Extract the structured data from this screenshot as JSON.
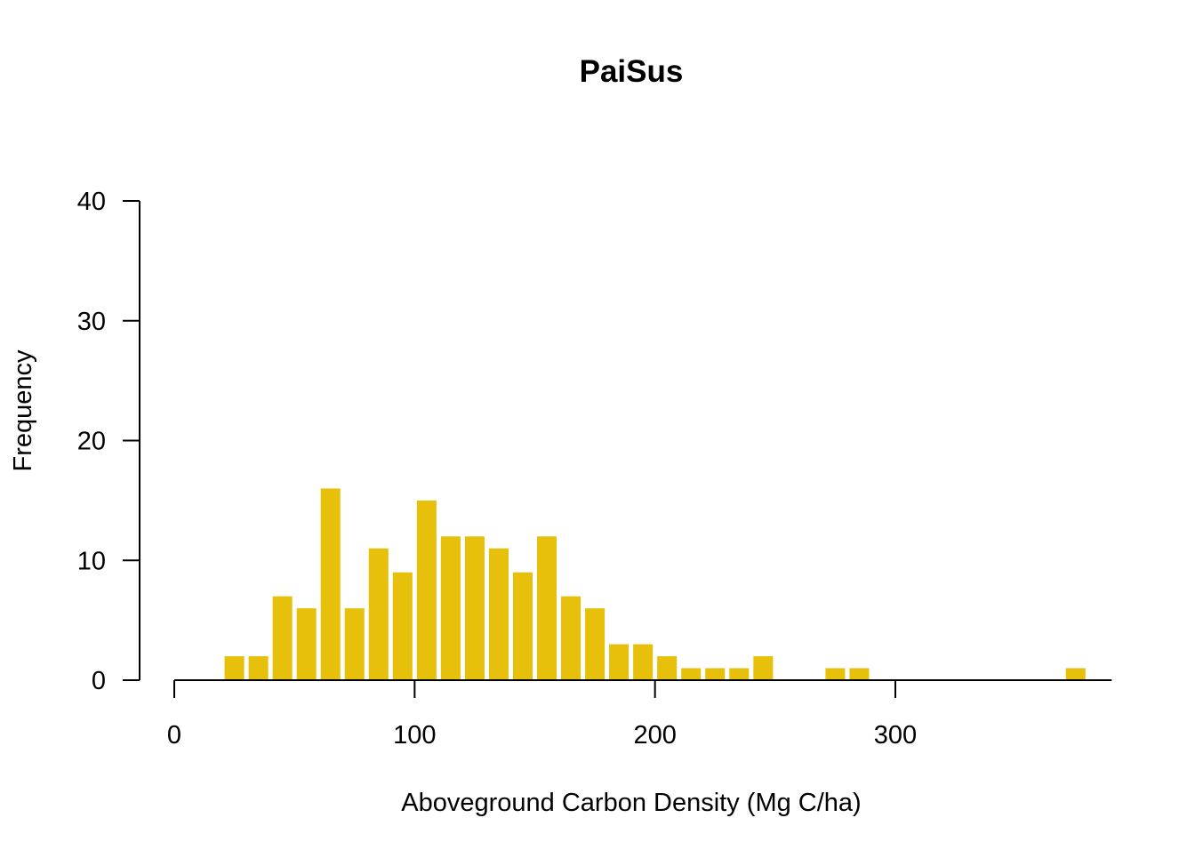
{
  "chart_data": {
    "type": "bar",
    "title": "PaiSus",
    "xlabel": "Aboveground Carbon Density (Mg C/ha)",
    "ylabel": "Frequency",
    "bar_color": "#E6C00A",
    "bin_width": 10,
    "xlim": [
      0,
      390
    ],
    "ylim": [
      0,
      40
    ],
    "x_ticks": [
      0,
      100,
      200,
      300
    ],
    "y_ticks": [
      0,
      10,
      20,
      30,
      40
    ],
    "bins": [
      {
        "start": 20,
        "end": 30,
        "count": 2
      },
      {
        "start": 30,
        "end": 40,
        "count": 2
      },
      {
        "start": 40,
        "end": 50,
        "count": 7
      },
      {
        "start": 50,
        "end": 60,
        "count": 6
      },
      {
        "start": 60,
        "end": 70,
        "count": 16
      },
      {
        "start": 70,
        "end": 80,
        "count": 6
      },
      {
        "start": 80,
        "end": 90,
        "count": 11
      },
      {
        "start": 90,
        "end": 100,
        "count": 9
      },
      {
        "start": 100,
        "end": 110,
        "count": 15
      },
      {
        "start": 110,
        "end": 120,
        "count": 12
      },
      {
        "start": 120,
        "end": 130,
        "count": 12
      },
      {
        "start": 130,
        "end": 140,
        "count": 11
      },
      {
        "start": 140,
        "end": 150,
        "count": 9
      },
      {
        "start": 150,
        "end": 160,
        "count": 12
      },
      {
        "start": 160,
        "end": 170,
        "count": 7
      },
      {
        "start": 170,
        "end": 180,
        "count": 6
      },
      {
        "start": 180,
        "end": 190,
        "count": 3
      },
      {
        "start": 190,
        "end": 200,
        "count": 3
      },
      {
        "start": 200,
        "end": 210,
        "count": 2
      },
      {
        "start": 210,
        "end": 220,
        "count": 1
      },
      {
        "start": 220,
        "end": 230,
        "count": 1
      },
      {
        "start": 230,
        "end": 240,
        "count": 1
      },
      {
        "start": 240,
        "end": 250,
        "count": 2
      },
      {
        "start": 270,
        "end": 280,
        "count": 1
      },
      {
        "start": 280,
        "end": 290,
        "count": 1
      },
      {
        "start": 370,
        "end": 380,
        "count": 1
      }
    ]
  }
}
